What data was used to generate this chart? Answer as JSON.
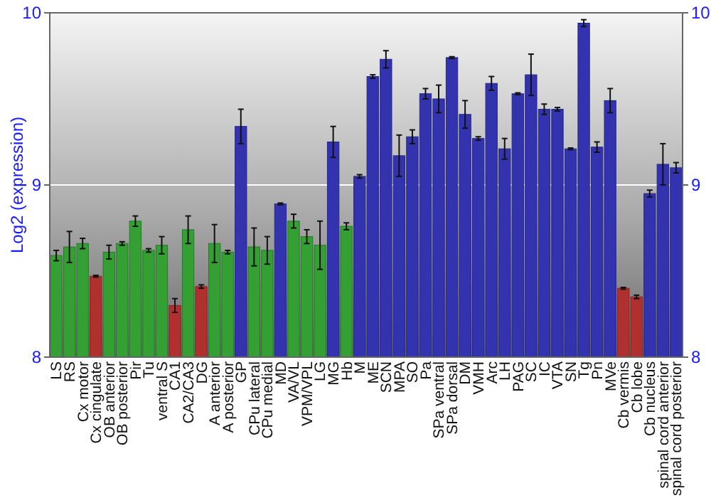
{
  "chart_data": {
    "type": "bar",
    "ylabel": "Log2 (expression)",
    "categories": [
      "LS",
      "RS",
      "Cx motor",
      "Cx cingulate",
      "OB anterior",
      "OB posterior",
      "Pir",
      "Tu",
      "ventral S",
      "CA1",
      "CA2/CA3",
      "DG",
      "A anterior",
      "A posterior",
      "GP",
      "CPu lateral",
      "CPu medial",
      "MD",
      "VA/VL",
      "VPM/VPL",
      "LG",
      "MG",
      "Hb",
      "M",
      "ME",
      "SCN",
      "MPA",
      "SO",
      "Pa",
      "SPa ventral",
      "SPa dorsal",
      "DM",
      "VMH",
      "Arc",
      "LH",
      "PAG",
      "SC",
      "IC",
      "VTA",
      "SN",
      "Tg",
      "Pn",
      "MVe",
      "Cb vermis",
      "Cb lobe",
      "Cb nucleus",
      "spinal cord anterior",
      "spinal cord posterior"
    ],
    "values": [
      8.59,
      8.64,
      8.66,
      8.47,
      8.61,
      8.66,
      8.79,
      8.62,
      8.65,
      8.3,
      8.74,
      8.41,
      8.66,
      8.61,
      9.34,
      8.64,
      8.62,
      8.89,
      8.79,
      8.7,
      8.65,
      9.25,
      8.76,
      9.05,
      9.63,
      9.73,
      9.17,
      9.28,
      9.53,
      9.5,
      9.74,
      9.41,
      9.27,
      9.59,
      9.21,
      9.53,
      9.64,
      9.44,
      9.44,
      9.21,
      9.94,
      9.22,
      9.49,
      8.4,
      8.35,
      8.95,
      9.12,
      9.1
    ],
    "errors": [
      0.03,
      0.09,
      0.03,
      0.005,
      0.04,
      0.01,
      0.03,
      0.01,
      0.05,
      0.04,
      0.08,
      0.01,
      0.11,
      0.01,
      0.1,
      0.11,
      0.08,
      0.005,
      0.04,
      0.04,
      0.14,
      0.09,
      0.02,
      0.01,
      0.01,
      0.05,
      0.12,
      0.04,
      0.03,
      0.08,
      0.005,
      0.08,
      0.01,
      0.04,
      0.06,
      0.005,
      0.12,
      0.03,
      0.01,
      0.005,
      0.02,
      0.03,
      0.07,
      0.005,
      0.01,
      0.02,
      0.12,
      0.03
    ],
    "colors": [
      "#34a034",
      "#34a034",
      "#34a034",
      "#b03030",
      "#34a034",
      "#34a034",
      "#34a034",
      "#34a034",
      "#34a034",
      "#b03030",
      "#34a034",
      "#b03030",
      "#34a034",
      "#34a034",
      "#3333b0",
      "#34a034",
      "#34a034",
      "#3333b0",
      "#34a034",
      "#34a034",
      "#34a034",
      "#3333b0",
      "#34a034",
      "#3333b0",
      "#3333b0",
      "#3333b0",
      "#3333b0",
      "#3333b0",
      "#3333b0",
      "#3333b0",
      "#3333b0",
      "#3333b0",
      "#3333b0",
      "#3333b0",
      "#3333b0",
      "#3333b0",
      "#3333b0",
      "#3333b0",
      "#3333b0",
      "#3333b0",
      "#3333b0",
      "#3333b0",
      "#3333b0",
      "#b03030",
      "#b03030",
      "#3333b0",
      "#3333b0",
      "#3333b0"
    ],
    "ylim": [
      8,
      10
    ],
    "yticks": [
      8,
      9,
      10
    ],
    "y2lim": [
      8,
      10
    ],
    "y2ticks": [
      8,
      9,
      10
    ],
    "grid": "y"
  }
}
